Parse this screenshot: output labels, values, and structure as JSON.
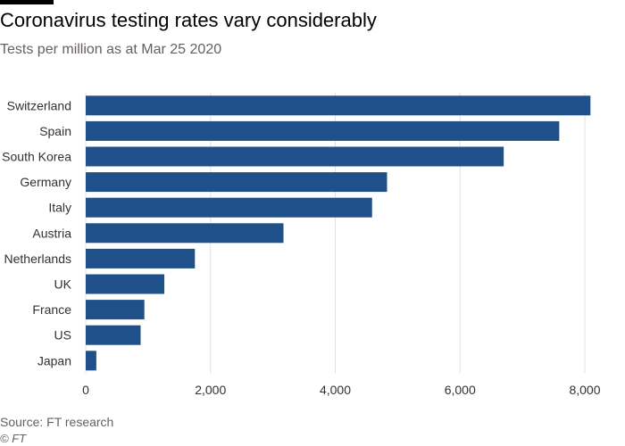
{
  "title": "Coronavirus testing rates vary considerably",
  "subtitle": "Tests per million as at Mar 25 2020",
  "source": "Source: FT research",
  "credit": "© FT",
  "colors": {
    "bar": "#1f5089",
    "grid": "#e6e1dc",
    "axis_text": "#33302e"
  },
  "chart_data": {
    "type": "bar",
    "orientation": "horizontal",
    "title": "Coronavirus testing rates vary considerably",
    "subtitle": "Tests per million as at Mar 25 2020",
    "xlabel": "",
    "ylabel": "",
    "xlim": [
      0,
      8000
    ],
    "xticks": [
      0,
      2000,
      4000,
      6000,
      8000
    ],
    "xtick_labels": [
      "0",
      "2,000",
      "4,000",
      "6,000",
      "8,000"
    ],
    "grid": true,
    "categories": [
      "Switzerland",
      "Spain",
      "South Korea",
      "Germany",
      "Italy",
      "Austria",
      "Netherlands",
      "UK",
      "France",
      "US",
      "Japan"
    ],
    "values": [
      8090,
      7590,
      6700,
      4830,
      4590,
      3170,
      1750,
      1260,
      940,
      880,
      170
    ]
  }
}
